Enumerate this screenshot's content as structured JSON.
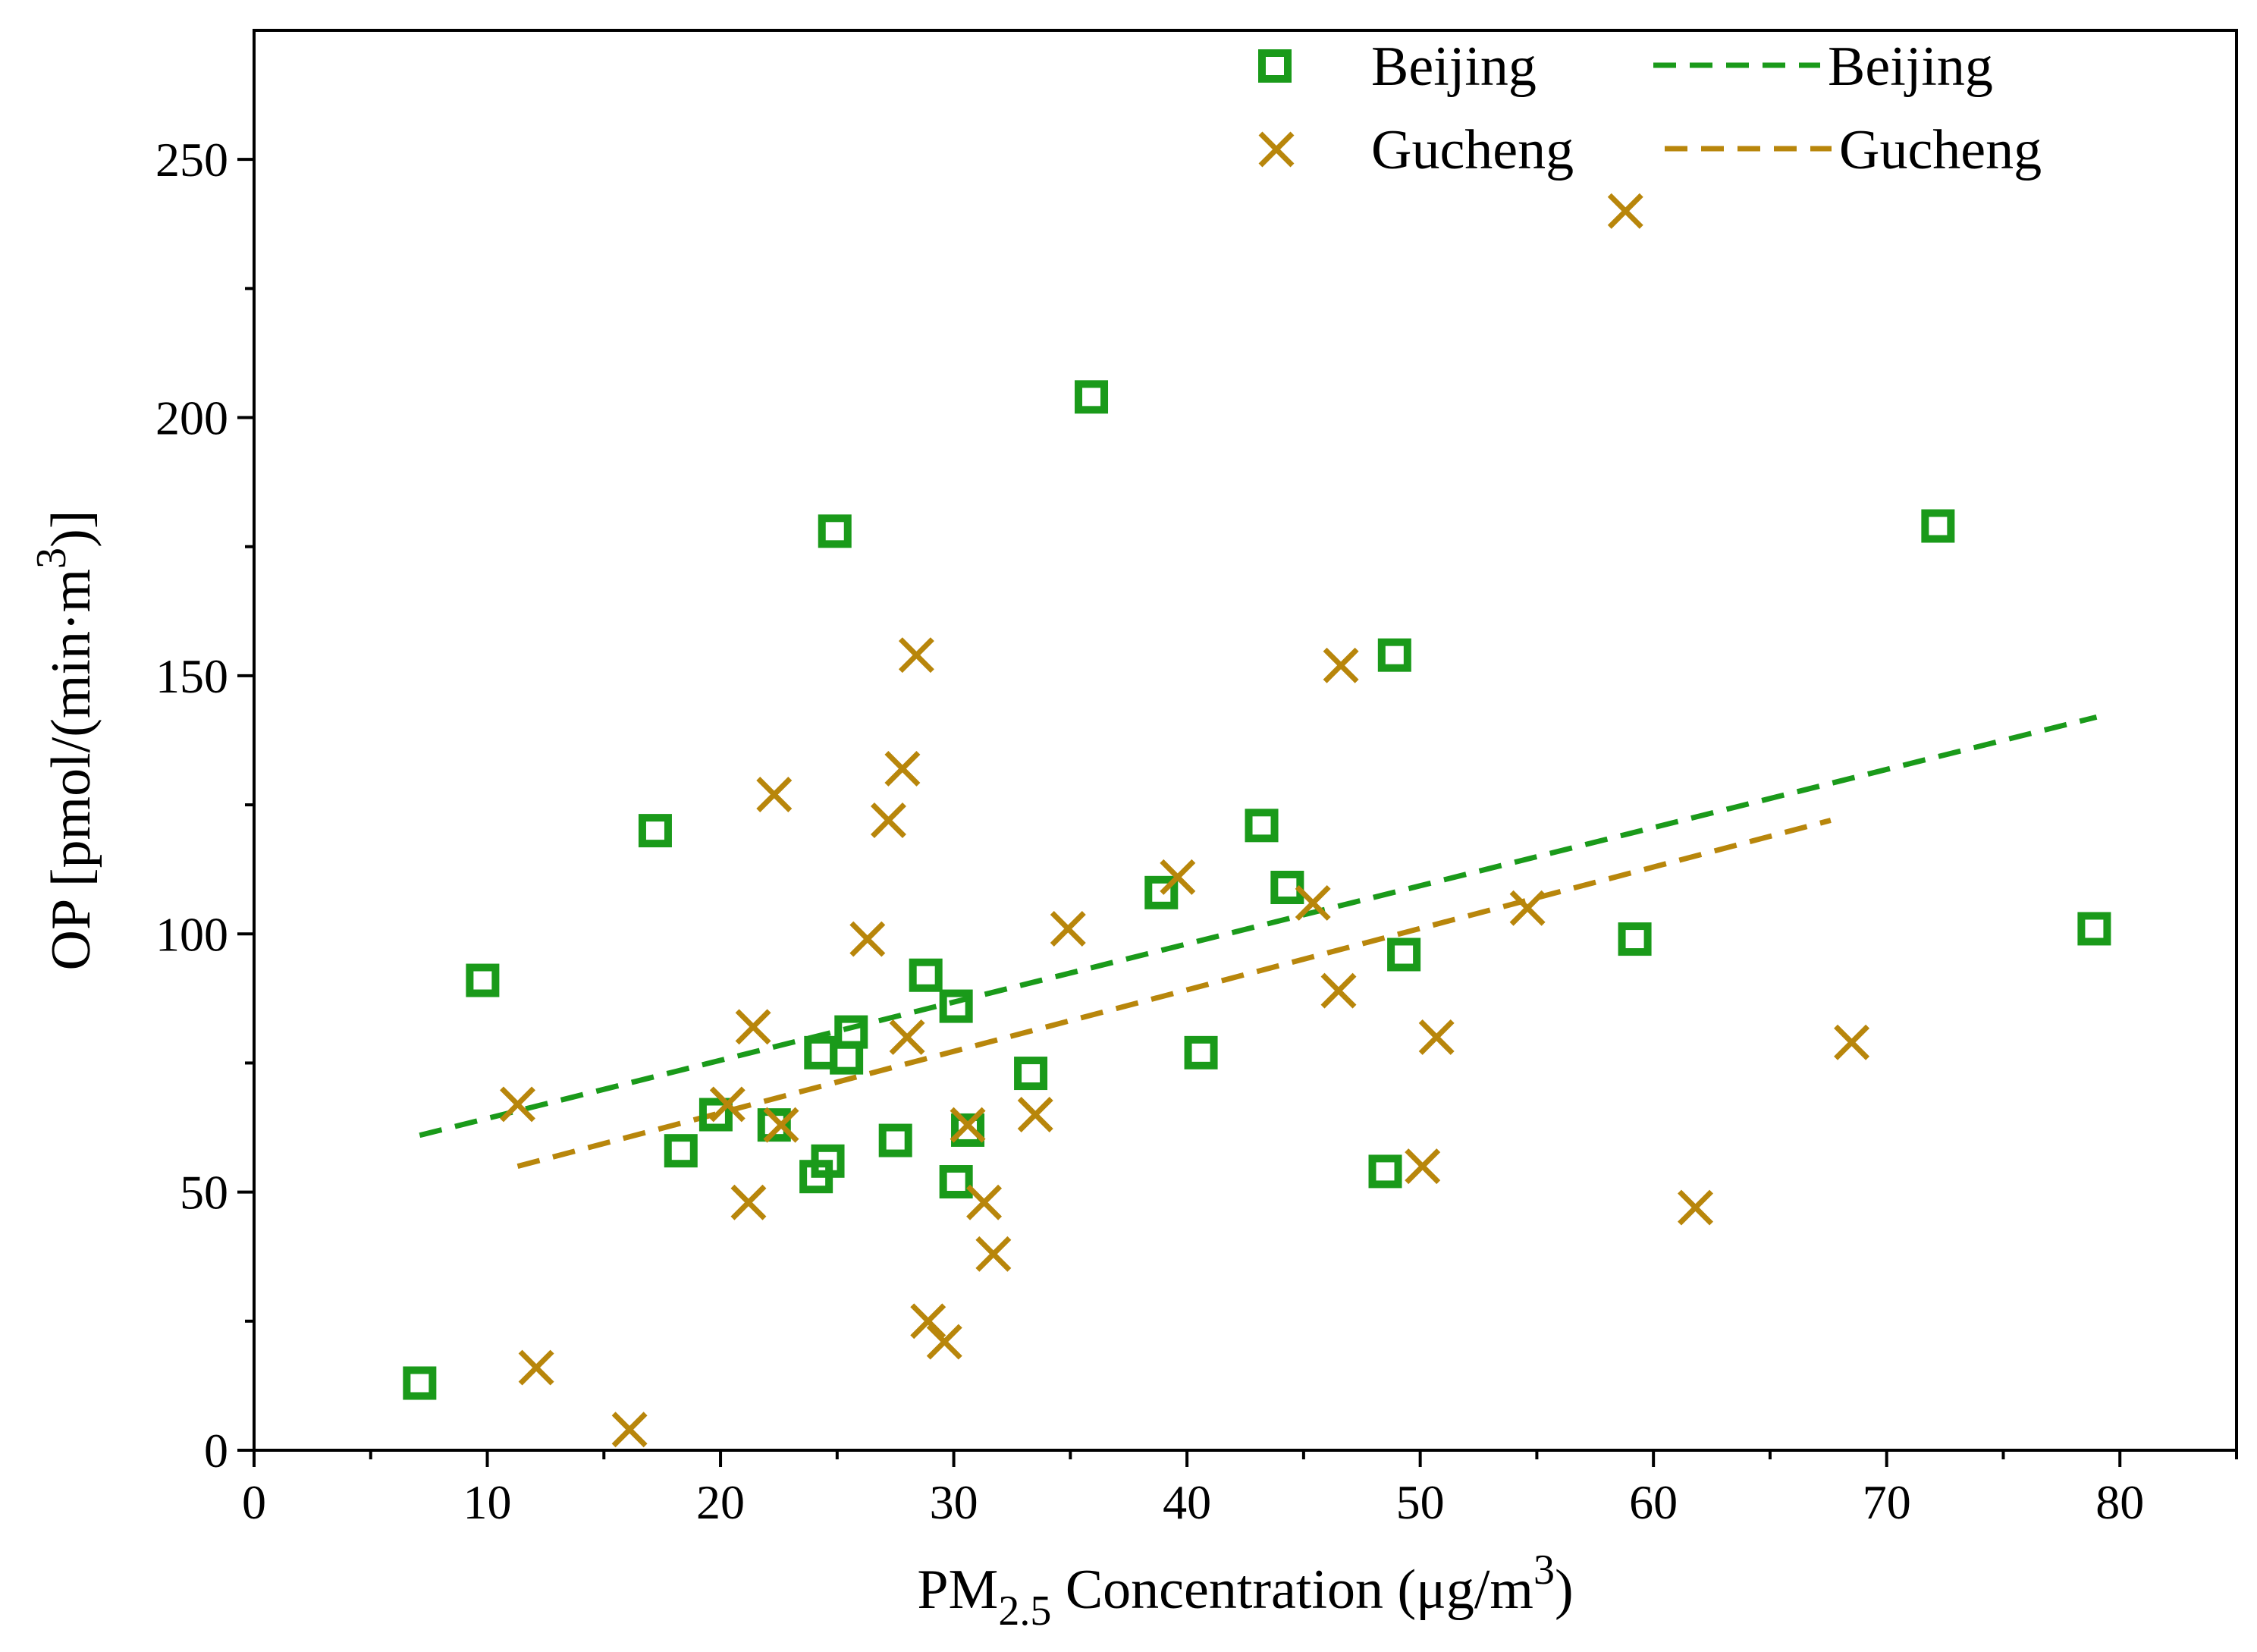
{
  "chart_data": {
    "type": "scatter",
    "title": "",
    "xlabel": {
      "prefix": "PM",
      "sub": "2.5",
      "mid": " Concentration (μg/m",
      "sup": "3",
      "suffix": ")"
    },
    "ylabel": {
      "prefix": "OP [pmol/(min·m",
      "sup": "3",
      "suffix": ")]"
    },
    "xlim": [
      0,
      85
    ],
    "ylim": [
      0,
      275
    ],
    "xticks": [
      0,
      10,
      20,
      30,
      40,
      50,
      60,
      70,
      80
    ],
    "yticks": [
      0,
      50,
      100,
      150,
      200,
      250
    ],
    "grid": false,
    "legend_position": "top-right",
    "series": [
      {
        "name": "Beijing",
        "marker": "open-square",
        "color": "#1a9a1a",
        "points": [
          [
            7.1,
            13
          ],
          [
            9.8,
            91
          ],
          [
            17.2,
            120
          ],
          [
            18.3,
            58
          ],
          [
            19.8,
            65
          ],
          [
            22.3,
            63
          ],
          [
            24.1,
            53
          ],
          [
            24.3,
            77
          ],
          [
            24.6,
            56
          ],
          [
            24.9,
            178
          ],
          [
            25.4,
            76
          ],
          [
            25.6,
            81
          ],
          [
            27.5,
            60
          ],
          [
            28.8,
            92
          ],
          [
            30.1,
            52
          ],
          [
            30.1,
            86
          ],
          [
            30.6,
            62
          ],
          [
            33.3,
            73
          ],
          [
            35.9,
            204
          ],
          [
            38.9,
            108
          ],
          [
            40.6,
            77
          ],
          [
            43.2,
            121
          ],
          [
            44.3,
            109
          ],
          [
            48.5,
            54
          ],
          [
            48.9,
            154
          ],
          [
            49.3,
            96
          ],
          [
            59.2,
            99
          ],
          [
            72.2,
            179
          ],
          [
            78.9,
            101
          ]
        ]
      },
      {
        "name": "Gucheng",
        "marker": "x",
        "color": "#b8860b",
        "points": [
          [
            11.3,
            67
          ],
          [
            12.1,
            16
          ],
          [
            16.1,
            4
          ],
          [
            20.3,
            67
          ],
          [
            21.2,
            48
          ],
          [
            21.4,
            82
          ],
          [
            22.3,
            127
          ],
          [
            22.6,
            63
          ],
          [
            26.3,
            99
          ],
          [
            27.2,
            122
          ],
          [
            27.8,
            132
          ],
          [
            28.0,
            80
          ],
          [
            28.4,
            154
          ],
          [
            28.9,
            25
          ],
          [
            29.6,
            21
          ],
          [
            30.6,
            63
          ],
          [
            31.3,
            48
          ],
          [
            31.7,
            38
          ],
          [
            33.5,
            65
          ],
          [
            34.9,
            101
          ],
          [
            39.6,
            111
          ],
          [
            45.4,
            106
          ],
          [
            46.5,
            89
          ],
          [
            46.6,
            152
          ],
          [
            50.1,
            55
          ],
          [
            50.7,
            80
          ],
          [
            54.6,
            105
          ],
          [
            58.8,
            240
          ],
          [
            61.8,
            47
          ],
          [
            68.5,
            79
          ]
        ]
      }
    ],
    "trendlines": [
      {
        "name": "Beijing",
        "color": "#1a9a1a",
        "x": [
          7.1,
          79.0
        ],
        "y": [
          61,
          142
        ]
      },
      {
        "name": "Gucheng",
        "color": "#b8860b",
        "x": [
          11.3,
          67.6
        ],
        "y": [
          55,
          122
        ]
      }
    ]
  }
}
